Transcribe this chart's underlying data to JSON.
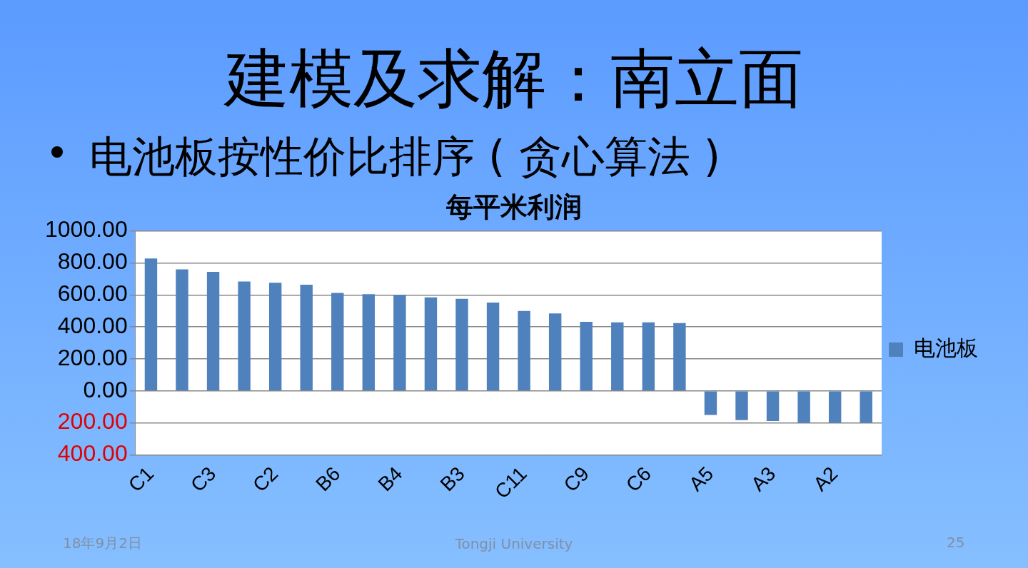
{
  "chart_data": {
    "type": "bar",
    "title": "每平米利润",
    "annotations": [
      "建模及求解：南立面",
      "电池板按性价比排序 ( 贪心算法 )",
      "18年9月2日",
      "Tongji University",
      "25"
    ],
    "categories": [
      "C1",
      null,
      "C3",
      null,
      "C2",
      null,
      "B6",
      null,
      "B4",
      null,
      "B3",
      null,
      "C11",
      null,
      "C9",
      null,
      "C6",
      null,
      "A5",
      null,
      "A3",
      null,
      "A2",
      null
    ],
    "series": [
      {
        "name": "电池板",
        "color": "#4f81bd",
        "values": [
          828,
          760,
          744,
          684,
          676,
          664,
          612,
          604,
          600,
          584,
          576,
          552,
          500,
          484,
          432,
          428,
          428,
          424,
          -151,
          -183,
          -189,
          -200,
          -200,
          -200
        ]
      }
    ],
    "ylim": [
      -400,
      1000
    ],
    "yticks": [
      {
        "value": -400,
        "label": "400.00"
      },
      {
        "value": -200,
        "label": "200.00"
      },
      "0.00",
      {
        "value": 200,
        "label": "200.00"
      },
      {
        "value": 400,
        "label": "400.00"
      },
      {
        "value": 600,
        "label": "600.00"
      },
      {
        "value": 800,
        "label": "800.00"
      },
      {
        "value": 1000,
        "label": "1000.00"
      }
    ],
    "grid": "y",
    "legend": "right"
  }
}
